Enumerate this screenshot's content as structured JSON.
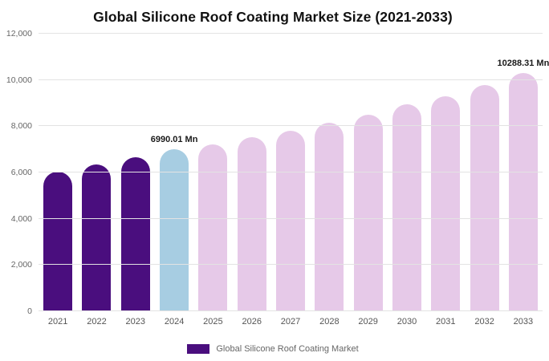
{
  "chart_data": {
    "type": "bar",
    "title": "Global Silicone Roof Coating Market Size (2021-2033)",
    "xlabel": "",
    "ylabel": "",
    "ylim": [
      0,
      12000
    ],
    "grid": true,
    "legend_position": "bottom",
    "yticks": [
      {
        "value": 0,
        "label": "0"
      },
      {
        "value": 2000,
        "label": "2,000"
      },
      {
        "value": 4000,
        "label": "4,000"
      },
      {
        "value": 6000,
        "label": "6,000"
      },
      {
        "value": 8000,
        "label": "8,000"
      },
      {
        "value": 10000,
        "label": "10,000"
      },
      {
        "value": 12000,
        "label": "12,000"
      }
    ],
    "categories": [
      "2021",
      "2022",
      "2023",
      "2024",
      "2025",
      "2026",
      "2027",
      "2028",
      "2029",
      "2030",
      "2031",
      "2032",
      "2033"
    ],
    "values": [
      6050,
      6350,
      6650,
      6990.01,
      7200,
      7520,
      7800,
      8150,
      8500,
      8950,
      9300,
      9780,
      10288.31
    ],
    "bar_colors": [
      "#4a0e7e",
      "#4a0e7e",
      "#4a0e7e",
      "#a7cde2",
      "#e6c9e8",
      "#e6c9e8",
      "#e6c9e8",
      "#e6c9e8",
      "#e6c9e8",
      "#e6c9e8",
      "#e6c9e8",
      "#e6c9e8",
      "#e6c9e8"
    ],
    "annotations": [
      {
        "category": "2024",
        "text": "6990.01 Mn"
      },
      {
        "category": "2033",
        "text": "10288.31 Mn"
      }
    ],
    "legend": [
      {
        "label": "Global Silicone Roof Coating Market",
        "color": "#4a0e7e"
      }
    ]
  }
}
